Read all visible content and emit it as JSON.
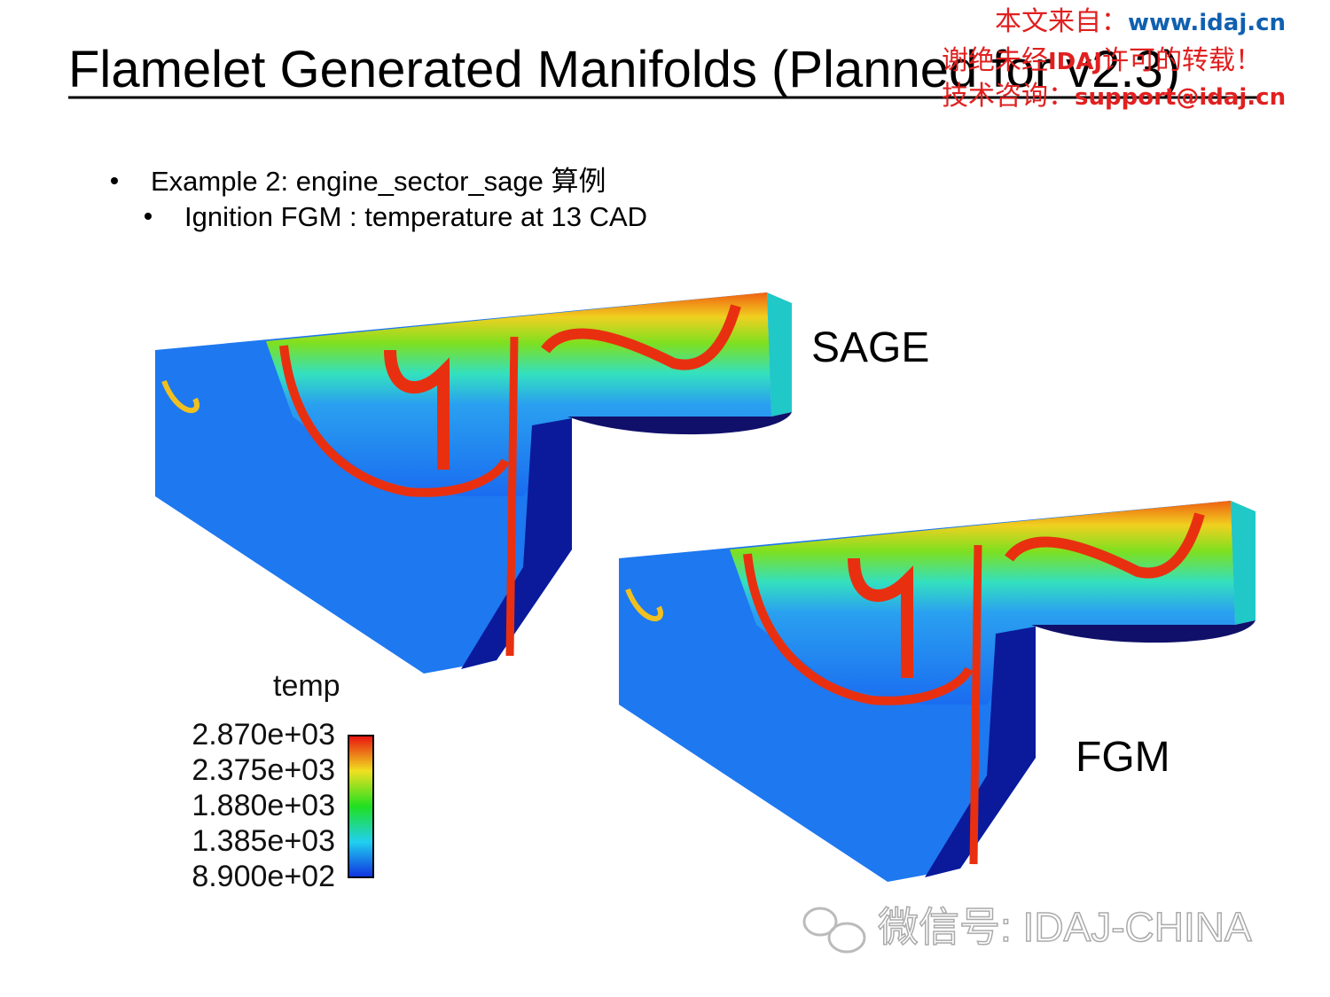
{
  "title": "Flamelet Generated Manifolds (Planned for v2.3)",
  "watermark": {
    "line1_prefix": "本文来自：",
    "line1_url": "www.idaj.cn",
    "line2_prefix": "谢绝未经",
    "line2_brand": "IDAJ",
    "line2_suffix": "许可的转载！",
    "line3_prefix": "技术咨询：",
    "line3_email": "support@idaj.cn"
  },
  "bullets": [
    {
      "text": "Example 2: engine_sector_sage 算例",
      "sub": [
        "Ignition FGM : temperature at 13 CAD"
      ]
    }
  ],
  "figures": [
    {
      "label": "SAGE"
    },
    {
      "label": "FGM"
    }
  ],
  "legend": {
    "title": "temp",
    "labels": [
      "2.870e+03",
      "2.375e+03",
      "1.880e+03",
      "1.385e+03",
      "8.900e+02"
    ]
  },
  "footer": "微信号: IDAJ-CHINA"
}
